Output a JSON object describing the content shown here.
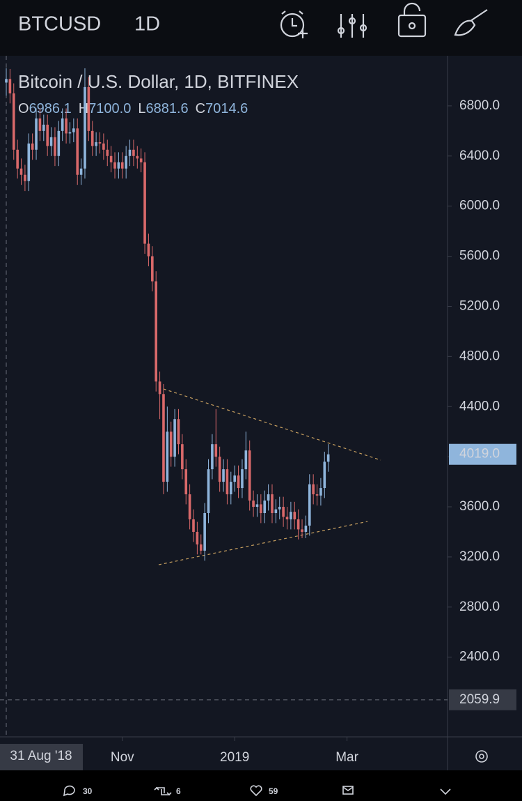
{
  "header": {
    "symbol": "BTCUSD",
    "interval": "1D"
  },
  "chart_data": {
    "type": "candlestick",
    "title": "Bitcoin / U.S. Dollar, 1D, BITFINEX",
    "legend_keys": [
      "O",
      "H",
      "L",
      "C"
    ],
    "legend_values": [
      "6986.1",
      "7100.0",
      "6881.6",
      "7014.6"
    ],
    "categories": [
      "31 Aug '18",
      null,
      null,
      null,
      null,
      null,
      null,
      null,
      null,
      null,
      null,
      null,
      null,
      null,
      null,
      null,
      null,
      null,
      null,
      null,
      null,
      null,
      null,
      null,
      null,
      null,
      null,
      null,
      null,
      null,
      null,
      "Nov",
      null,
      null,
      null,
      null,
      null,
      null,
      null,
      null,
      null,
      null,
      null,
      null,
      null,
      null,
      null,
      null,
      null,
      null,
      null,
      null,
      null,
      null,
      null,
      null,
      null,
      null,
      null,
      null,
      null,
      "2019",
      null,
      null,
      null,
      null,
      null,
      null,
      null,
      null,
      null,
      null,
      null,
      null,
      null,
      null,
      null,
      null,
      null,
      null,
      null,
      null,
      null,
      null,
      null,
      null,
      null,
      null,
      null,
      null,
      null,
      "Mar"
    ],
    "open": [
      6986.1,
      7014.6,
      6900,
      6450,
      6300,
      6250,
      6200,
      6500,
      6450,
      6700,
      6600,
      6650,
      6480,
      6550,
      6400,
      6600,
      6700,
      6580,
      6590,
      6620,
      6250,
      6300,
      6950,
      6600,
      6480,
      6510,
      6500,
      6450,
      6400,
      6350,
      6300,
      6350,
      6300,
      6400,
      6450,
      6400,
      6380,
      6350,
      5700,
      5600,
      5400,
      4600,
      4500,
      3800,
      4200,
      4000,
      4300,
      4100,
      3900,
      3700,
      3500,
      3400,
      3300,
      3250,
      3550,
      3900,
      4100,
      4000,
      3800,
      3900,
      3700,
      3800,
      3850,
      3750,
      3900,
      4050,
      3650,
      3600,
      3620,
      3550,
      3650,
      3700,
      3550,
      3580,
      3600,
      3520,
      3500,
      3560,
      3500,
      3420,
      3400,
      3450,
      3780,
      3700,
      3690,
      3750,
      3960,
      null,
      null,
      null,
      null,
      null
    ],
    "high": [
      7100,
      7094.6,
      6980,
      6530,
      6380,
      6330,
      6580,
      6580,
      6780,
      6780,
      6730,
      6730,
      6630,
      6630,
      6680,
      6780,
      6780,
      6670,
      6700,
      6700,
      6380,
      7100,
      7030,
      6680,
      6590,
      6590,
      6580,
      6530,
      6480,
      6430,
      6430,
      6430,
      6480,
      6530,
      6530,
      6480,
      6460,
      6430,
      5780,
      5680,
      5480,
      4680,
      4580,
      4400,
      4280,
      4380,
      4380,
      4180,
      3980,
      3780,
      3580,
      3480,
      3380,
      3630,
      3980,
      4180,
      4380,
      4080,
      3980,
      3980,
      3880,
      3930,
      3930,
      3980,
      4200,
      4130,
      3730,
      3700,
      3700,
      3730,
      3780,
      3780,
      3660,
      3680,
      3680,
      3600,
      3640,
      3640,
      3580,
      3500,
      3530,
      3860,
      3860,
      3780,
      3830,
      4040,
      4100,
      null,
      null,
      null,
      null,
      null
    ],
    "low": [
      6881.6,
      6820,
      6370,
      6220,
      6170,
      6120,
      6120,
      6370,
      6370,
      6520,
      6520,
      6400,
      6400,
      6320,
      6320,
      6520,
      6500,
      6500,
      6510,
      6170,
      6170,
      6220,
      6520,
      6400,
      6400,
      6420,
      6370,
      6320,
      6270,
      6220,
      6220,
      6220,
      6220,
      6320,
      6320,
      6300,
      6270,
      5620,
      5520,
      5320,
      4520,
      4300,
      3700,
      3720,
      3920,
      3920,
      4020,
      3820,
      3620,
      3420,
      3320,
      3220,
      3220,
      3170,
      3470,
      3820,
      3920,
      3720,
      3720,
      3620,
      3620,
      3720,
      3670,
      3670,
      3820,
      3570,
      3520,
      3520,
      3470,
      3470,
      3570,
      3470,
      3470,
      3500,
      3440,
      3420,
      3420,
      3420,
      3340,
      3350,
      3350,
      3370,
      3620,
      3610,
      3610,
      3670,
      3880,
      null,
      null,
      null,
      null,
      null
    ],
    "close": [
      7014.6,
      6900,
      6450,
      6300,
      6250,
      6200,
      6500,
      6450,
      6700,
      6600,
      6650,
      6480,
      6550,
      6400,
      6600,
      6700,
      6580,
      6590,
      6620,
      6250,
      6300,
      6950,
      6600,
      6480,
      6510,
      6500,
      6450,
      6400,
      6350,
      6300,
      6350,
      6300,
      6400,
      6450,
      6400,
      6380,
      6350,
      5700,
      5600,
      5400,
      4600,
      4500,
      3800,
      4200,
      4000,
      4300,
      4100,
      3900,
      3700,
      3500,
      3400,
      3300,
      3250,
      3550,
      3900,
      4100,
      4000,
      3800,
      3900,
      3700,
      3800,
      3850,
      3750,
      3900,
      4050,
      3650,
      3600,
      3620,
      3550,
      3650,
      3700,
      3550,
      3580,
      3600,
      3520,
      3500,
      3560,
      3500,
      3420,
      3400,
      3450,
      3780,
      3700,
      3690,
      3750,
      3960,
      4019,
      null,
      null,
      null,
      null,
      null
    ],
    "up_color": "#8fb5dc",
    "down_color": "#d9696a",
    "ylim": [
      1764,
      7200
    ],
    "yticks": [
      {
        "value": 2400,
        "label": "2400.0"
      },
      {
        "value": 2800,
        "label": "2800.0"
      },
      {
        "value": 3200,
        "label": "3200.0"
      },
      {
        "value": 3600,
        "label": "3600.0"
      },
      {
        "value": 4000,
        "label": "4000.0"
      },
      {
        "value": 4400,
        "label": "4400.0"
      },
      {
        "value": 4800,
        "label": "4800.0"
      },
      {
        "value": 5200,
        "label": "5200.0"
      },
      {
        "value": 5600,
        "label": "5600.0"
      },
      {
        "value": 6000,
        "label": "6000.0"
      },
      {
        "value": 6400,
        "label": "6400.0"
      },
      {
        "value": 6800,
        "label": "6800.0"
      }
    ],
    "price_markers": [
      {
        "value": 4019,
        "label": "4019.0",
        "color": "#8fb5dc"
      },
      {
        "value": 2059.9,
        "label": "2059.9",
        "color": "#363a45"
      }
    ],
    "trendlines": [
      {
        "x": [
          42,
          100
        ],
        "y": [
          4541,
          3973
        ],
        "color": "#c8a060"
      },
      {
        "x": [
          40.7,
          96.5
        ],
        "y": [
          3138,
          3483
        ],
        "color": "#c8a060"
      }
    ]
  },
  "footer": {
    "replies": "30",
    "retweets": "6",
    "likes": "59"
  }
}
